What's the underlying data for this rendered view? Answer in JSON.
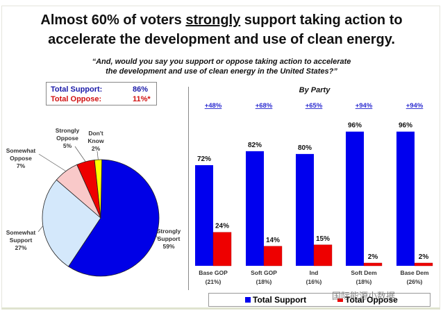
{
  "header": {
    "title_line1_pre": "Almost 60% of voters ",
    "title_line1_underlined": "strongly",
    "title_line1_post": " support taking action to",
    "title_line2": "accelerate the development and use of clean energy.",
    "question_line1": "“And, would you say you support or oppose taking action to accelerate",
    "question_line2": "the development and use of clean energy in the United States?”"
  },
  "totals": {
    "support_label": "Total Support:",
    "support_value": "86%",
    "oppose_label": "Total Oppose:",
    "oppose_value": "11%*",
    "support_color": "#1a1aa8",
    "oppose_color": "#d01010"
  },
  "watermark": "国际能源小数据",
  "chart_data": [
    {
      "type": "pie",
      "title": "",
      "slices": [
        {
          "label": "Strongly Support",
          "value": 59,
          "display": "59%",
          "color": "#0000e6"
        },
        {
          "label": "Somewhat Support",
          "value": 27,
          "display": "27%",
          "color": "#d4e8fb"
        },
        {
          "label": "Somewhat Oppose",
          "value": 7,
          "display": "7%",
          "color": "#f9c9c9"
        },
        {
          "label": "Strongly Oppose",
          "value": 5,
          "display": "5%",
          "color": "#ee0000"
        },
        {
          "label": "Don't Know",
          "value": 2,
          "display": "2%",
          "color": "#ffff00"
        }
      ]
    },
    {
      "type": "bar",
      "title": "By Party",
      "categories": [
        "Base GOP",
        "Soft GOP",
        "Ind",
        "Soft Dem",
        "Base Dem"
      ],
      "category_shares": [
        "(21%)",
        "(18%)",
        "(16%)",
        "(18%)",
        "(26%)"
      ],
      "net_labels": [
        "+48%",
        "+68%",
        "+65%",
        "+94%",
        "+94%"
      ],
      "series": [
        {
          "name": "Total Support",
          "color": "#0000ee",
          "values": [
            72,
            82,
            80,
            96,
            96
          ]
        },
        {
          "name": "Total Oppose",
          "color": "#ee0000",
          "values": [
            24,
            14,
            15,
            2,
            2
          ]
        }
      ],
      "ylim": [
        0,
        100
      ],
      "xlabel": "",
      "ylabel": "",
      "grid": false,
      "legend": "bottom"
    }
  ]
}
